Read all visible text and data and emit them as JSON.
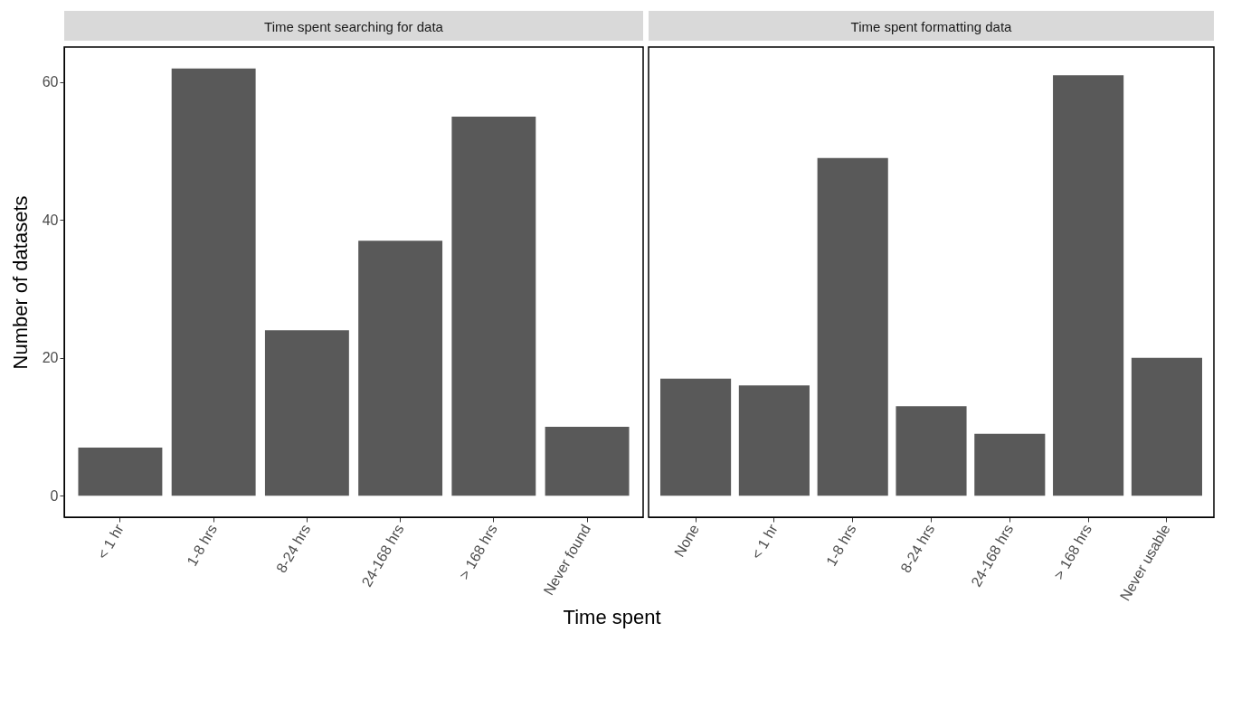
{
  "chart_data": [
    {
      "type": "bar",
      "title": "Time spent searching for data",
      "xlabel": "Time spent",
      "ylabel": "Number of datasets",
      "categories": [
        "< 1 hr",
        "1-8 hrs",
        "8-24 hrs",
        "24-168 hrs",
        "> 168 hrs",
        "Never found"
      ],
      "values": [
        7,
        62,
        24,
        37,
        55,
        10
      ],
      "color": "#595959",
      "ylim": [
        -3.1,
        65.1
      ],
      "yticks": [
        0,
        20,
        40,
        60
      ],
      "grid": false
    },
    {
      "type": "bar",
      "title": "Time spent formatting data",
      "categories": [
        "None",
        "< 1 hr",
        "1-8 hrs",
        "8-24 hrs",
        "24-168 hrs",
        "> 168 hrs",
        "Never usable"
      ],
      "values": [
        17,
        16,
        49,
        13,
        9,
        61,
        20
      ],
      "color": "#595959",
      "ylim": [
        -3.1,
        65.1
      ],
      "yticks": [
        0,
        20,
        40,
        60
      ],
      "grid": false,
      "tick_labels": "x"
    }
  ]
}
